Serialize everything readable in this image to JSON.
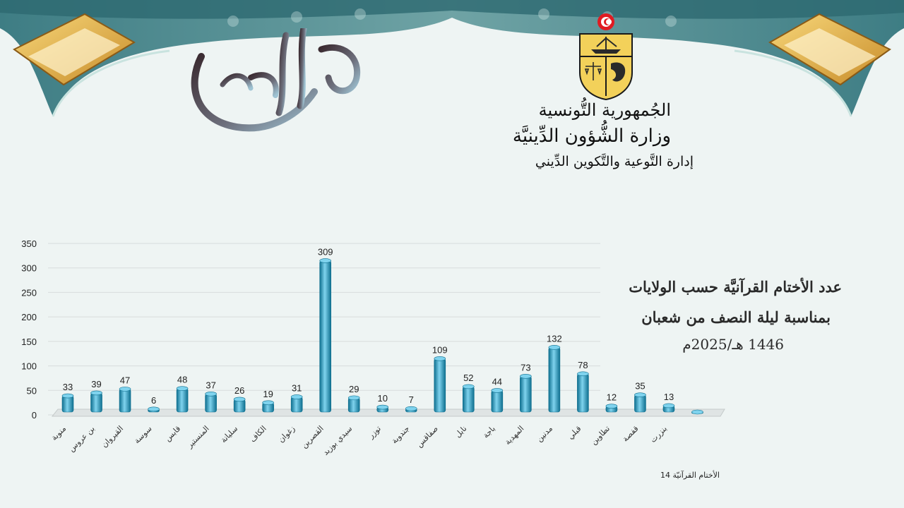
{
  "header": {
    "line1": "الجُمهورية التُّونسية",
    "line2": "وزارة الشُّؤون الدِّينيَّة",
    "line3": "إدارة التَّوعية والتَّكوين الدِّيني"
  },
  "calligraphy_text": "شهر شعبان",
  "title": {
    "line1": "عدد الأختام القرآنيَّة حسب الولايات",
    "line2": "بمناسبة ليلة النصف من شعبان",
    "line3": "1446 هـ/2025م"
  },
  "footnote": "الأختام القرآنيّة 14",
  "colors": {
    "bar": "#1f9fc8",
    "bar_dark": "#0e6f8f",
    "bar_light": "#7fd3ee",
    "banner": "#2e6f78"
  },
  "chart_data": {
    "type": "bar",
    "categories": [
      "منوبة",
      "بن عروس",
      "القيروان",
      "سوسة",
      "قابس",
      "المنستير",
      "سليانة",
      "الكاف",
      "زغوان",
      "القصرين",
      "سيدي بوزيد",
      "توزر",
      "جندوبة",
      "صفاقس",
      "نابل",
      "باجة",
      "المهدية",
      "مدنين",
      "قبلي",
      "تطاوين",
      "قفصة",
      "بنزرت",
      ""
    ],
    "values": [
      33,
      39,
      47,
      6,
      48,
      37,
      26,
      19,
      31,
      309,
      29,
      10,
      7,
      109,
      52,
      44,
      73,
      132,
      78,
      12,
      35,
      13,
      0
    ],
    "labels": [
      "33",
      "39",
      "47",
      "6",
      "48",
      "37",
      "26",
      "19",
      "31",
      "309",
      "29",
      "10",
      "7",
      "109",
      "52",
      "44",
      "73",
      "132",
      "78",
      "12",
      "35",
      "13",
      ""
    ],
    "ylim": [
      0,
      350
    ],
    "yticks": [
      0,
      50,
      100,
      150,
      200,
      250,
      300,
      350
    ],
    "grid": true
  }
}
